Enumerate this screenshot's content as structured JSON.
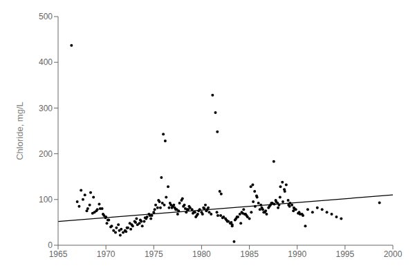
{
  "chart_data": {
    "type": "scatter",
    "ylabel": "Chloride, mg/L",
    "xlim": [
      1965,
      2000
    ],
    "ylim": [
      0,
      500
    ],
    "xticks": [
      1965,
      1970,
      1975,
      1980,
      1985,
      1990,
      1995,
      2000
    ],
    "yticks": [
      0,
      100,
      200,
      300,
      400,
      500
    ],
    "grid": false,
    "series": [
      {
        "type": "scatter",
        "color": "#000000",
        "marker": "circle",
        "x": [
          1966.4,
          1967.4,
          1967.8,
          1968.1,
          1968.4,
          1968.7,
          1969.0,
          1969.3,
          1969.6,
          1969.8,
          1969.95,
          1970.2,
          1970.5,
          1970.8,
          1971.0,
          1971.3,
          1971.5,
          1971.8,
          1972.0,
          1972.3,
          1972.5,
          1972.8,
          1973.0,
          1973.2,
          1973.5,
          1973.8,
          1974.0,
          1974.3,
          1974.5,
          1974.7,
          1975.0,
          1975.2,
          1975.5,
          1975.7,
          1975.8,
          1976.0,
          1976.2,
          1976.5,
          1976.7,
          1976.9,
          1977.1,
          1977.3,
          1977.5,
          1977.7,
          1977.9,
          1978.0,
          1978.2,
          1978.4,
          1978.6,
          1978.8,
          1979.0,
          1979.2,
          1979.4,
          1979.6,
          1979.8,
          1980.0,
          1980.2,
          1980.4,
          1980.6,
          1980.8,
          1981.0,
          1981.15,
          1981.45,
          1981.65,
          1981.9,
          1982.05,
          1982.3,
          1982.5,
          1982.7,
          1983.0,
          1983.2,
          1983.4,
          1983.6,
          1983.8,
          1984.0,
          1984.2,
          1984.4,
          1984.6,
          1984.8,
          1985.0,
          1985.15,
          1985.35,
          1985.55,
          1985.75,
          1985.95,
          1986.2,
          1986.4,
          1986.6,
          1986.8,
          1987.0,
          1987.2,
          1987.4,
          1987.55,
          1987.75,
          1987.95,
          1988.1,
          1988.25,
          1988.45,
          1988.65,
          1988.85,
          1989.05,
          1989.25,
          1989.45,
          1989.65,
          1989.85,
          1990.2,
          1990.5,
          1990.85,
          1991.1,
          1991.6,
          1992.1,
          1992.6,
          1993.1,
          1993.6,
          1994.1,
          1994.6,
          1998.6,
          1967.2,
          1968.0,
          1968.6,
          1969.4,
          1970.0,
          1970.3,
          1971.6,
          1972.1,
          1972.6,
          1973.3,
          1973.7,
          1974.2,
          1974.8,
          1975.4,
          1975.9,
          1976.3,
          1976.8,
          1977.2,
          1977.6,
          1978.1,
          1978.5,
          1979.1,
          1979.5,
          1980.1,
          1980.5,
          1981.6,
          1982.0,
          1982.6,
          1983.1,
          1983.5,
          1984.1,
          1984.5,
          1985.2,
          1985.6,
          1986.1,
          1986.5,
          1987.1,
          1987.6,
          1988.0,
          1988.5,
          1989.1,
          1989.6,
          1990.1,
          1990.6,
          1967.0,
          1967.6,
          1968.3,
          1968.8,
          1969.1,
          1969.7,
          1970.1,
          1970.6,
          1971.1,
          1971.4,
          1972.2,
          1972.7,
          1973.1,
          1973.6,
          1974.1,
          1974.6,
          1975.1,
          1975.6,
          1976.1,
          1976.6,
          1977.0,
          1977.4,
          1978.3,
          1978.7,
          1979.3,
          1979.7,
          1980.3,
          1980.7,
          1981.7,
          1982.2,
          1982.8,
          1983.2,
          1983.7,
          1984.3,
          1984.7,
          1985.4,
          1985.8,
          1986.3,
          1986.7,
          1987.3,
          1987.8,
          1988.2,
          1988.7,
          1989.2,
          1989.7,
          1990.3
        ],
        "values": [
          437,
          120,
          110,
          80,
          115,
          105,
          75,
          90,
          80,
          65,
          60,
          55,
          40,
          32,
          28,
          45,
          22,
          28,
          32,
          38,
          48,
          42,
          52,
          58,
          48,
          42,
          52,
          62,
          68,
          58,
          72,
          88,
          98,
          82,
          148,
          243,
          228,
          128,
          92,
          82,
          88,
          78,
          68,
          92,
          98,
          102,
          88,
          72,
          78,
          82,
          78,
          72,
          62,
          68,
          78,
          72,
          82,
          88,
          78,
          72,
          68,
          328,
          290,
          248,
          118,
          112,
          62,
          58,
          52,
          48,
          42,
          8,
          58,
          62,
          68,
          72,
          78,
          68,
          62,
          58,
          128,
          132,
          118,
          108,
          92,
          88,
          78,
          72,
          68,
          82,
          88,
          92,
          183,
          98,
          92,
          88,
          128,
          138,
          122,
          132,
          98,
          92,
          88,
          82,
          78,
          72,
          68,
          42,
          78,
          72,
          82,
          78,
          72,
          68,
          62,
          58,
          93,
          85,
          75,
          70,
          80,
          62,
          55,
          35,
          30,
          35,
          45,
          52,
          58,
          65,
          82,
          92,
          105,
          88,
          82,
          75,
          85,
          78,
          70,
          65,
          68,
          75,
          72,
          65,
          55,
          50,
          55,
          48,
          68,
          72,
          85,
          78,
          72,
          85,
          90,
          82,
          95,
          88,
          75,
          70,
          65,
          95,
          100,
          88,
          72,
          78,
          68,
          48,
          42,
          38,
          32,
          38,
          45,
          50,
          55,
          60,
          65,
          78,
          95,
          88,
          82,
          85,
          78,
          80,
          85,
          72,
          75,
          80,
          82,
          65,
          60,
          52,
          45,
          62,
          70,
          65,
          95,
          105,
          82,
          75,
          92,
          95,
          105,
          118,
          85,
          80,
          68
        ]
      },
      {
        "type": "line",
        "color": "#000000",
        "line_style": "solid",
        "x": [
          1965,
          2000
        ],
        "values": [
          52,
          110
        ]
      }
    ]
  }
}
